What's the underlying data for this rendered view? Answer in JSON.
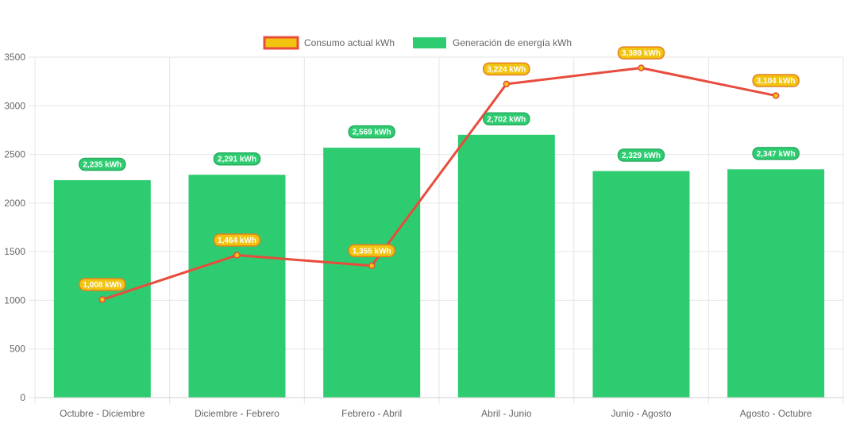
{
  "chart_data": {
    "type": "bar",
    "categories": [
      "Octubre - Diciembre",
      "Diciembre - Febrero",
      "Febrero - Abril",
      "Abril - Junio",
      "Junio - Agosto",
      "Agosto - Octubre"
    ],
    "series": [
      {
        "name": "Consumo actual kWh",
        "type": "line",
        "values": [
          1008,
          1464,
          1355,
          3224,
          3389,
          3104
        ],
        "labels": [
          "1,008 kWh",
          "1,464 kWh",
          "1,355 kWh",
          "3,224 kWh",
          "3,389 kWh",
          "3,104 kWh"
        ],
        "color": "#e74c3c",
        "label_color": "#f1c40f"
      },
      {
        "name": "Generación de energía kWh",
        "type": "bar",
        "values": [
          2235,
          2291,
          2569,
          2702,
          2329,
          2347
        ],
        "labels": [
          "2,235 kWh",
          "2,291 kWh",
          "2,569 kWh",
          "2,702 kWh",
          "2,329 kWh",
          "2,347 kWh"
        ],
        "color": "#2ecc71",
        "label_color": "#27ae60"
      }
    ],
    "ylim": [
      0,
      3500
    ],
    "yticks": [
      0,
      500,
      1000,
      1500,
      2000,
      2500,
      3000,
      3500
    ],
    "grid": true,
    "legend_position": "top"
  }
}
